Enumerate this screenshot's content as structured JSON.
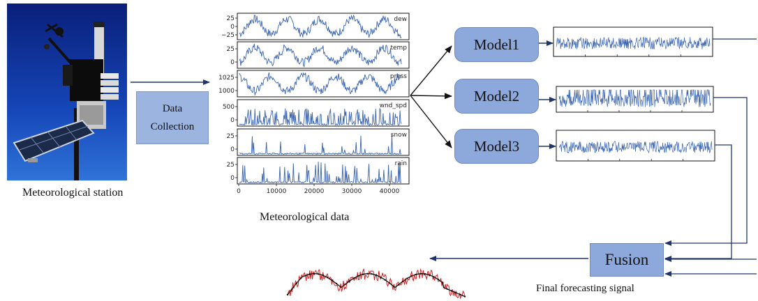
{
  "station": {
    "caption": "Meteorological station"
  },
  "collection": {
    "line1": "Data",
    "line2": "Collection"
  },
  "met_data": {
    "caption": "Meteorological data",
    "panels": [
      {
        "name": "dew",
        "ticks": [
          "25",
          "0",
          "−25"
        ]
      },
      {
        "name": "temp",
        "ticks": [
          "25",
          "0"
        ]
      },
      {
        "name": "press",
        "ticks": [
          "1025",
          "1000"
        ]
      },
      {
        "name": "wnd_spd",
        "ticks": [
          "500",
          "0"
        ]
      },
      {
        "name": "snow",
        "ticks": [
          "25",
          "0"
        ]
      },
      {
        "name": "rain",
        "ticks": [
          "25",
          "0"
        ]
      }
    ],
    "x_ticks": [
      "0",
      "10000",
      "20000",
      "30000",
      "40000"
    ]
  },
  "models": [
    {
      "label": "Model1"
    },
    {
      "label": "Model2"
    },
    {
      "label": "Model3"
    }
  ],
  "fusion": {
    "label": "Fusion"
  },
  "final": {
    "caption": "Final forecasting signal"
  },
  "colors": {
    "series": "#3a64b0",
    "box_fill": "#8da9dc",
    "arrow_main": "#1f3569",
    "arrow_model": "#111111",
    "forecast_raw": "#d21f1f",
    "forecast_smooth": "#111111"
  }
}
